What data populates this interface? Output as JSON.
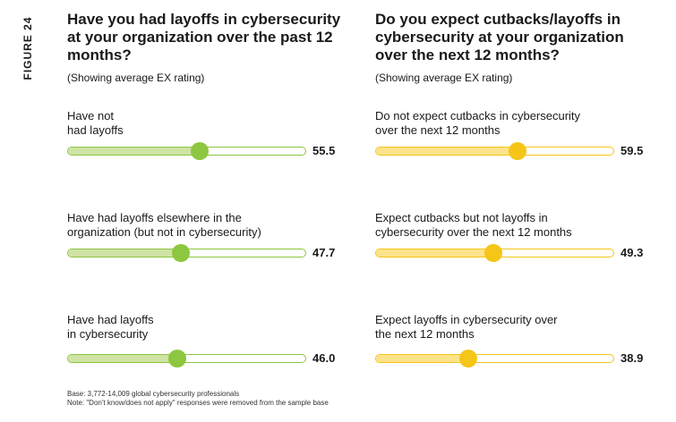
{
  "figure_label": "FIGURE 24",
  "colors": {
    "left_fill": "#cfe3a5",
    "left_border": "#8dc63f",
    "left_dot": "#8dc63f",
    "right_fill": "#fce38a",
    "right_border": "#f5c518",
    "right_dot": "#f5c518"
  },
  "chart_data": [
    {
      "type": "bar",
      "title": "Have you had layoffs in cybersecurity at your organization over the past 12 months?",
      "subtitle": "(Showing average EX rating)",
      "categories": [
        "Have not\nhad layoffs",
        "Have had layoffs elsewhere in the\norganization (but not in cybersecurity)",
        "Have had layoffs\nin cybersecurity"
      ],
      "values": [
        55.5,
        47.7,
        46.0
      ],
      "value_labels": [
        "55.5",
        "47.7",
        "46.0"
      ],
      "xlim": [
        0,
        100
      ]
    },
    {
      "type": "bar",
      "title": "Do you expect cutbacks/layoffs in cybersecurity at your organization over the next 12 months?",
      "subtitle": "(Showing average EX rating)",
      "categories": [
        "Do not expect cutbacks in cybersecurity\nover the next 12 months",
        "Expect cutbacks but not layoffs in\ncybersecurity over the next 12 months",
        "Expect layoffs in cybersecurity over\nthe next 12 months"
      ],
      "values": [
        59.5,
        49.3,
        38.9
      ],
      "value_labels": [
        "59.5",
        "49.3",
        "38.9"
      ],
      "xlim": [
        0,
        100
      ]
    }
  ],
  "footnote": {
    "base": "Base: 3,772-14,009 global cybersecurity professionals",
    "note": "Note: \"Don't know/does not apply\" responses were removed from the sample base"
  }
}
